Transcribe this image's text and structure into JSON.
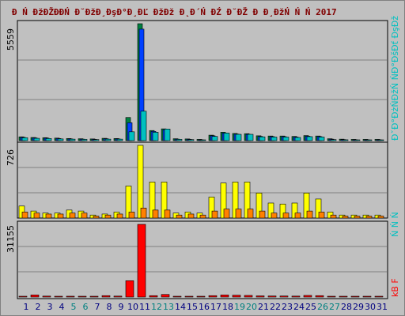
{
  "title": "Đ Ń ĐžĐŽĐĐŃ Đ˘ĐžĐ¸ĐşĐ°Đ¸ĐĽ ĐžĐž Đ˛Đ´Ń ĐŹ Đ˘ĐŽ Đ Đ¸ĐžŃ Ń Ń  2017",
  "right_legend": {
    "top": "ĐˇĐ°ĐżŃĐžŃ ŃĐ°ĐšĐť ĐşĐž",
    "mid": "Ń Ń Ń",
    "bot": "kB F"
  },
  "colors": {
    "background": "#c0c0c0",
    "panel": "#c0c0c0",
    "grid": "#808080",
    "hits": "#008040",
    "files": "#0040ff",
    "pages": "#00c0c0",
    "visits": "#ffff00",
    "sites": "#ff8000",
    "kbytes": "#ff0000",
    "day_normal": "#000080",
    "day_weekend": "#008080"
  },
  "chart_data": [
    {
      "type": "bar",
      "panel": "hits-files-pages",
      "categories": [
        "1",
        "2",
        "3",
        "4",
        "5",
        "6",
        "7",
        "8",
        "9",
        "10",
        "11",
        "12",
        "13",
        "14",
        "15",
        "16",
        "17",
        "18",
        "19",
        "20",
        "21",
        "22",
        "23",
        "24",
        "25",
        "26",
        "27",
        "28",
        "29",
        "30",
        "31"
      ],
      "ylabel_max": "5559",
      "ylim": [
        0,
        5559
      ],
      "series": [
        {
          "name": "hits",
          "values": [
            180,
            150,
            140,
            120,
            100,
            90,
            80,
            110,
            100,
            1100,
            5559,
            480,
            560,
            90,
            80,
            60,
            260,
            400,
            340,
            330,
            230,
            220,
            220,
            200,
            240,
            220,
            90,
            70,
            60,
            60,
            60
          ]
        },
        {
          "name": "files",
          "values": [
            160,
            130,
            120,
            100,
            80,
            70,
            60,
            90,
            80,
            850,
            5300,
            440,
            520,
            70,
            60,
            40,
            230,
            360,
            310,
            300,
            200,
            190,
            190,
            170,
            210,
            190,
            70,
            50,
            40,
            40,
            40
          ]
        },
        {
          "name": "pages",
          "values": [
            140,
            110,
            100,
            80,
            70,
            60,
            50,
            70,
            70,
            420,
            1400,
            400,
            550,
            60,
            50,
            30,
            200,
            360,
            300,
            300,
            180,
            170,
            170,
            150,
            190,
            170,
            50,
            40,
            30,
            30,
            30
          ]
        }
      ]
    },
    {
      "type": "bar",
      "panel": "visits-sites",
      "categories": [
        "1",
        "2",
        "3",
        "4",
        "5",
        "6",
        "7",
        "8",
        "9",
        "10",
        "11",
        "12",
        "13",
        "14",
        "15",
        "16",
        "17",
        "18",
        "19",
        "20",
        "21",
        "22",
        "23",
        "24",
        "25",
        "26",
        "27",
        "28",
        "29",
        "30",
        "31"
      ],
      "ylabel_max": "726",
      "ylim": [
        0,
        726
      ],
      "series": [
        {
          "name": "visits",
          "values": [
            120,
            70,
            50,
            50,
            80,
            70,
            30,
            40,
            60,
            320,
            726,
            360,
            360,
            50,
            60,
            50,
            210,
            350,
            360,
            360,
            250,
            150,
            140,
            150,
            250,
            190,
            60,
            30,
            30,
            30,
            30
          ]
        },
        {
          "name": "sites",
          "values": [
            60,
            50,
            40,
            40,
            50,
            50,
            20,
            30,
            40,
            60,
            100,
            80,
            80,
            30,
            40,
            30,
            70,
            90,
            90,
            90,
            70,
            50,
            50,
            50,
            70,
            60,
            30,
            20,
            20,
            20,
            20
          ]
        }
      ]
    },
    {
      "type": "bar",
      "panel": "kbytes",
      "categories": [
        "1",
        "2",
        "3",
        "4",
        "5",
        "6",
        "7",
        "8",
        "9",
        "10",
        "11",
        "12",
        "13",
        "14",
        "15",
        "16",
        "17",
        "18",
        "19",
        "20",
        "21",
        "22",
        "23",
        "24",
        "25",
        "26",
        "27",
        "28",
        "29",
        "30",
        "31"
      ],
      "ylabel_max": "31155",
      "ylim": [
        0,
        31155
      ],
      "series": [
        {
          "name": "kB F",
          "values": [
            300,
            900,
            400,
            300,
            350,
            250,
            250,
            600,
            400,
            7000,
            31155,
            600,
            1100,
            300,
            300,
            200,
            600,
            900,
            800,
            700,
            500,
            450,
            450,
            400,
            700,
            600,
            300,
            200,
            200,
            200,
            200
          ]
        }
      ]
    }
  ],
  "day_labels": [
    "1",
    "2",
    "3",
    "4",
    "5",
    "6",
    "7",
    "8",
    "9",
    "10",
    "11",
    "12",
    "13",
    "14",
    "15",
    "16",
    "17",
    "18",
    "19",
    "20",
    "21",
    "22",
    "23",
    "24",
    "25",
    "26",
    "27",
    "28",
    "29",
    "30",
    "31"
  ],
  "weekend_days": [
    5,
    6,
    12,
    13,
    19,
    20,
    26,
    27
  ]
}
